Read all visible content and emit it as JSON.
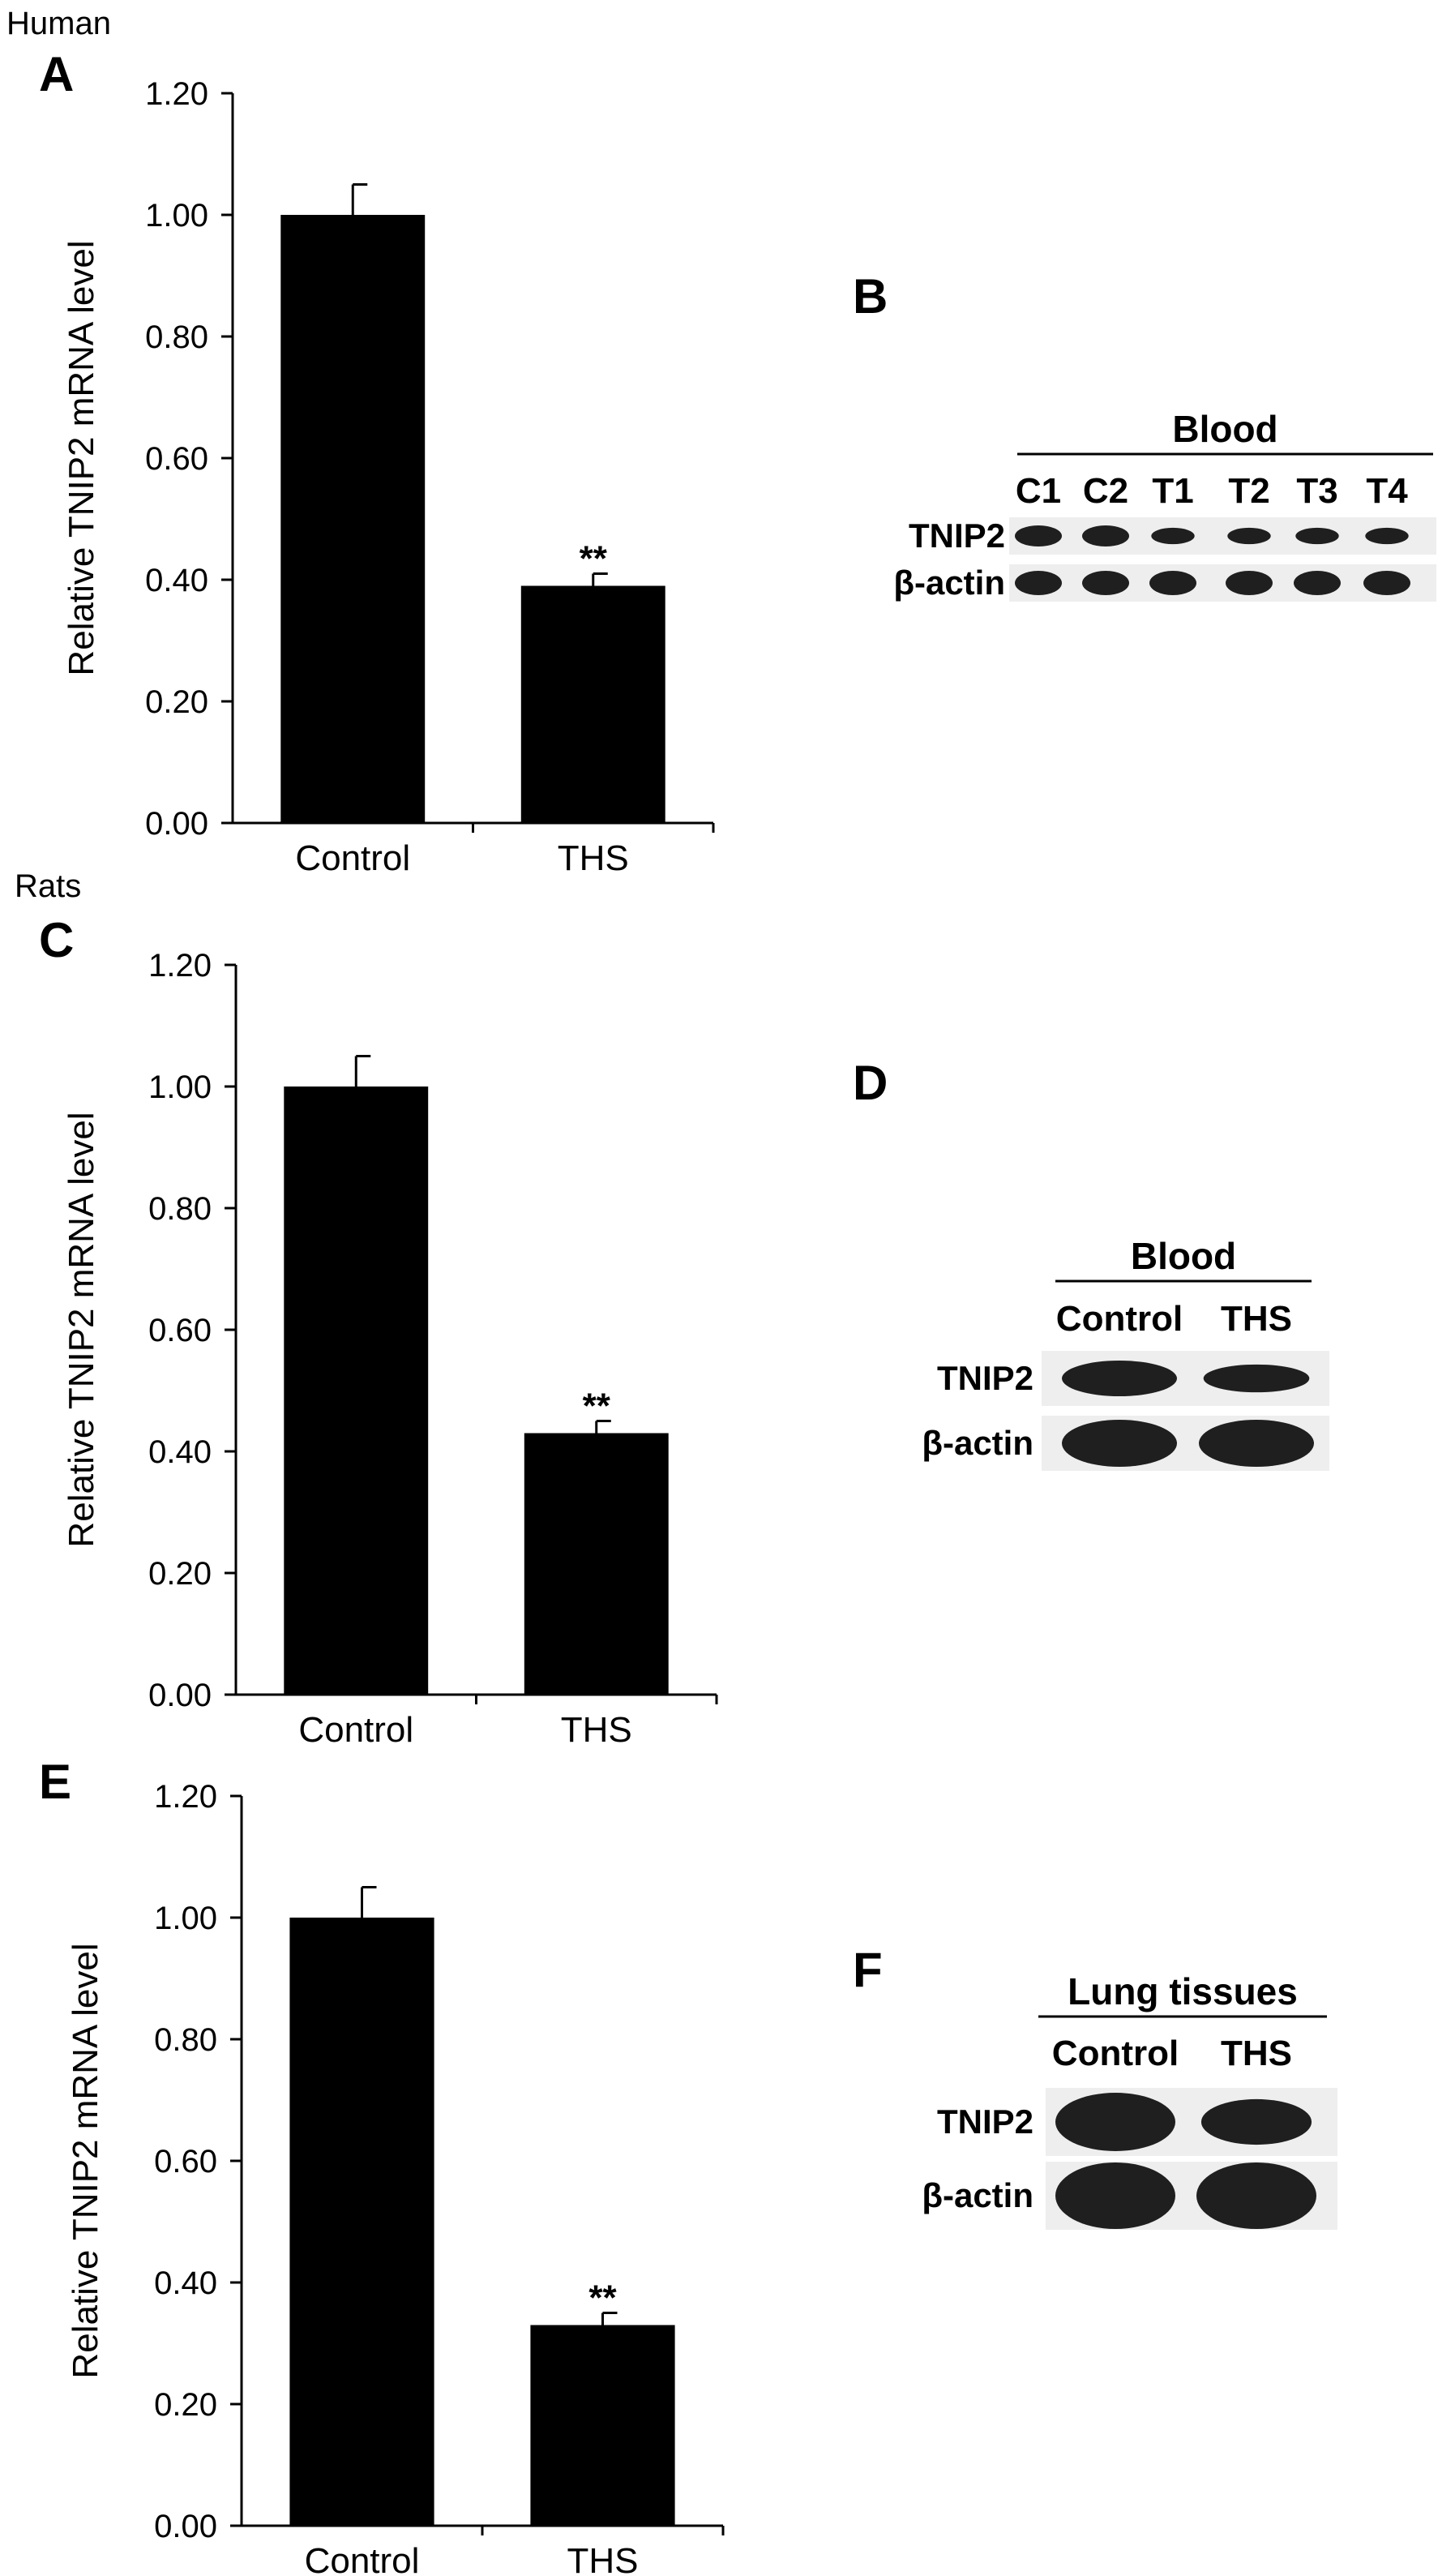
{
  "figure": {
    "groups": [
      "Human",
      "Rats"
    ],
    "panels": [
      "A",
      "B",
      "C",
      "D",
      "E",
      "F"
    ]
  },
  "chart_data": [
    {
      "panel": "A",
      "type": "bar",
      "ylabel": "Relative TNIP2 mRNA level",
      "xlabel": "",
      "ylim": [
        0,
        1.2
      ],
      "yticks": [
        "0.00",
        "0.20",
        "0.40",
        "0.60",
        "0.80",
        "1.00",
        "1.20"
      ],
      "categories": [
        "Control",
        "THS"
      ],
      "values": [
        1.0,
        0.39
      ],
      "errors": [
        0.05,
        0.02
      ],
      "annotations": [
        "",
        "**"
      ],
      "color": "#000000",
      "grid": false
    },
    {
      "panel": "C",
      "type": "bar",
      "ylabel": "Relative TNIP2 mRNA level",
      "xlabel": "",
      "ylim": [
        0,
        1.2
      ],
      "yticks": [
        "0.00",
        "0.20",
        "0.40",
        "0.60",
        "0.80",
        "1.00",
        "1.20"
      ],
      "categories": [
        "Control",
        "THS"
      ],
      "values": [
        1.0,
        0.43
      ],
      "errors": [
        0.05,
        0.02
      ],
      "annotations": [
        "",
        "**"
      ],
      "color": "#000000",
      "grid": false
    },
    {
      "panel": "E",
      "type": "bar",
      "ylabel": "Relative TNIP2 mRNA level",
      "xlabel": "",
      "ylim": [
        0,
        1.2
      ],
      "yticks": [
        "0.00",
        "0.20",
        "0.40",
        "0.60",
        "0.80",
        "1.00",
        "1.20"
      ],
      "categories": [
        "Control",
        "THS"
      ],
      "values": [
        1.0,
        0.33
      ],
      "errors": [
        0.05,
        0.02
      ],
      "annotations": [
        "",
        "**"
      ],
      "color": "#000000",
      "grid": false
    }
  ],
  "blots": [
    {
      "panel": "B",
      "title": "Blood",
      "lanes": [
        "C1",
        "C2",
        "T1",
        "T2",
        "T3",
        "T4"
      ],
      "rows": [
        "TNIP2",
        "β-actin"
      ]
    },
    {
      "panel": "D",
      "title": "Blood",
      "lanes": [
        "Control",
        "THS"
      ],
      "rows": [
        "TNIP2",
        "β-actin"
      ]
    },
    {
      "panel": "F",
      "title": "Lung tissues",
      "lanes": [
        "Control",
        "THS"
      ],
      "rows": [
        "TNIP2",
        "β-actin"
      ]
    }
  ]
}
